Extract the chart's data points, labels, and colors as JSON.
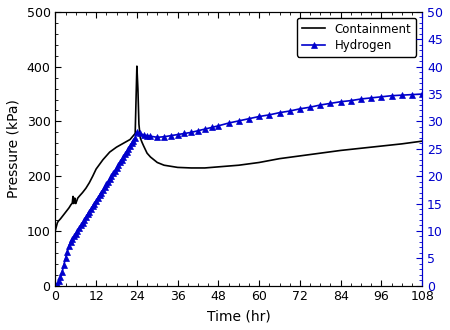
{
  "containment_time": [
    0,
    0.3,
    0.6,
    0.9,
    1.2,
    1.5,
    2.0,
    2.5,
    3.0,
    3.5,
    4.0,
    4.3,
    4.6,
    4.9,
    5.0,
    5.1,
    5.2,
    5.3,
    5.4,
    5.5,
    5.6,
    5.7,
    5.8,
    5.9,
    6.0,
    6.3,
    6.6,
    7.0,
    8.0,
    9.0,
    10.0,
    11.0,
    12.0,
    14.0,
    16.0,
    18.0,
    20.0,
    22.0,
    23.5,
    24.0,
    24.3,
    24.6,
    25.0,
    25.5,
    26.0,
    27.0,
    28.0,
    30.0,
    32.0,
    34.0,
    36.0,
    40.0,
    44.0,
    48.0,
    54.0,
    60.0,
    66.0,
    72.0,
    78.0,
    84.0,
    90.0,
    96.0,
    102.0,
    108.0
  ],
  "containment_pressure": [
    101,
    108,
    115,
    118,
    120,
    122,
    126,
    130,
    134,
    138,
    142,
    145,
    148,
    150,
    152,
    158,
    163,
    155,
    150,
    153,
    157,
    160,
    156,
    152,
    150,
    155,
    160,
    163,
    170,
    178,
    188,
    200,
    213,
    230,
    244,
    253,
    260,
    267,
    278,
    401,
    360,
    295,
    270,
    262,
    255,
    242,
    235,
    225,
    220,
    218,
    216,
    215,
    215,
    217,
    220,
    225,
    232,
    237,
    242,
    247,
    251,
    255,
    259,
    264
  ],
  "hydrogen_time": [
    0,
    0.5,
    1.0,
    1.5,
    2.0,
    2.5,
    3.0,
    3.5,
    4.0,
    4.5,
    5.0,
    5.5,
    6.0,
    6.5,
    7.0,
    7.5,
    8.0,
    8.5,
    9.0,
    9.5,
    10.0,
    10.5,
    11.0,
    11.5,
    12.0,
    12.5,
    13.0,
    13.5,
    14.0,
    14.5,
    15.0,
    15.5,
    16.0,
    16.5,
    17.0,
    17.5,
    18.0,
    18.5,
    19.0,
    19.5,
    20.0,
    20.5,
    21.0,
    21.5,
    22.0,
    22.5,
    23.0,
    23.5,
    24.0,
    25.0,
    26.0,
    27.0,
    28.0,
    30.0,
    32.0,
    34.0,
    36.0,
    38.0,
    40.0,
    42.0,
    44.0,
    46.0,
    48.0,
    51.0,
    54.0,
    57.0,
    60.0,
    63.0,
    66.0,
    69.0,
    72.0,
    75.0,
    78.0,
    81.0,
    84.0,
    87.0,
    90.0,
    93.0,
    96.0,
    99.0,
    102.0,
    105.0,
    108.0
  ],
  "hydrogen_pressure": [
    0,
    0.3,
    0.8,
    1.5,
    2.5,
    3.8,
    5.0,
    6.2,
    7.2,
    8.0,
    8.5,
    9.0,
    9.5,
    10.0,
    10.5,
    11.0,
    11.5,
    12.0,
    12.5,
    13.0,
    13.5,
    14.0,
    14.5,
    15.0,
    15.5,
    16.0,
    16.5,
    17.0,
    17.5,
    18.0,
    18.5,
    19.0,
    19.5,
    20.0,
    20.5,
    21.0,
    21.5,
    22.0,
    22.5,
    23.0,
    23.5,
    24.0,
    24.5,
    25.0,
    25.5,
    26.0,
    26.5,
    27.0,
    28.0,
    27.8,
    27.5,
    27.4,
    27.3,
    27.1,
    27.2,
    27.4,
    27.6,
    27.8,
    28.0,
    28.3,
    28.6,
    28.9,
    29.2,
    29.7,
    30.1,
    30.5,
    30.9,
    31.2,
    31.6,
    31.9,
    32.3,
    32.6,
    33.0,
    33.3,
    33.6,
    33.8,
    34.1,
    34.3,
    34.5,
    34.7,
    34.8,
    34.9,
    35.0
  ],
  "containment_color": "#000000",
  "hydrogen_color": "#0000cc",
  "ylabel_left": "Pressure (kPa)",
  "xlabel": "Time (hr)",
  "xlim": [
    0,
    108
  ],
  "ylim_left": [
    0,
    500
  ],
  "ylim_right": [
    0,
    50
  ],
  "xticks": [
    0,
    12,
    24,
    36,
    48,
    60,
    72,
    84,
    96,
    108
  ],
  "yticks_left": [
    0,
    100,
    200,
    300,
    400,
    500
  ],
  "yticks_right": [
    0,
    5,
    10,
    15,
    20,
    25,
    30,
    35,
    40,
    45,
    50
  ],
  "legend_containment": "Containment",
  "legend_hydrogen": "Hydrogen",
  "bg_color": "#ffffff",
  "marker": "^",
  "marker_size": 4,
  "line_width": 1.2,
  "fig_width": 4.5,
  "fig_height": 3.3
}
